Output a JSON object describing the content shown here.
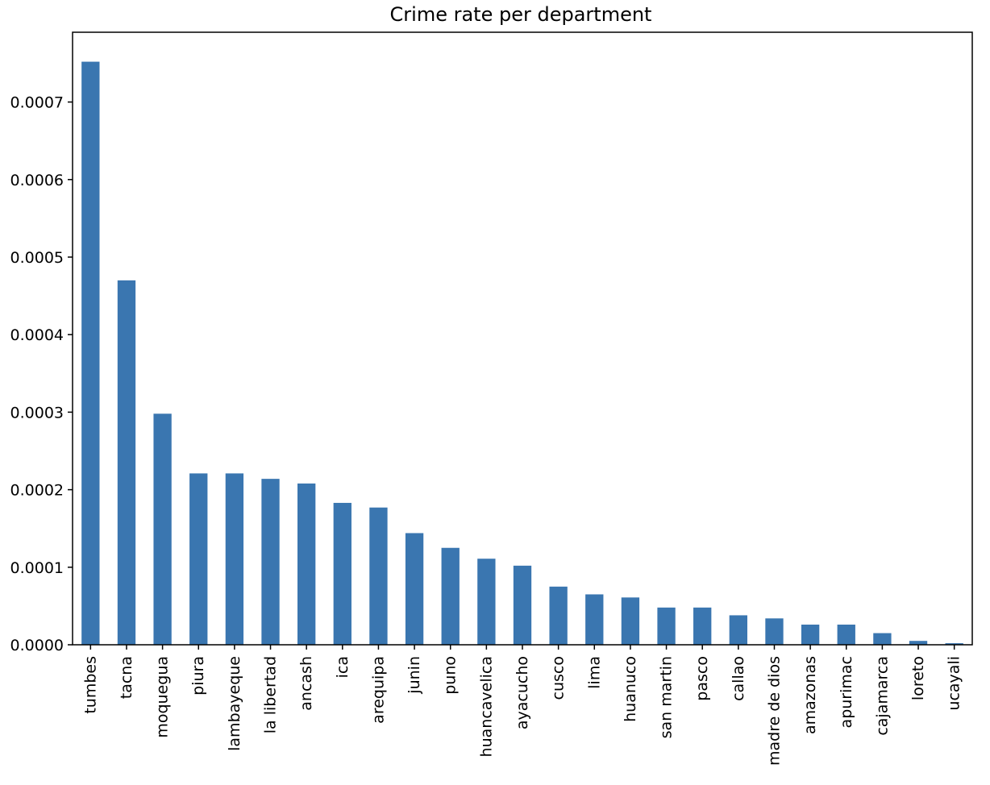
{
  "chart_data": {
    "type": "bar",
    "title": "Crime rate per department",
    "xlabel": "",
    "ylabel": "",
    "categories": [
      "tumbes",
      "tacna",
      "moquegua",
      "piura",
      "lambayeque",
      "la libertad",
      "ancash",
      "ica",
      "arequipa",
      "junin",
      "puno",
      "huancavelica",
      "ayacucho",
      "cusco",
      "lima",
      "huanuco",
      "san martin",
      "pasco",
      "callao",
      "madre de dios",
      "amazonas",
      "apurimac",
      "cajamarca",
      "loreto",
      "ucayali"
    ],
    "values": [
      0.000752,
      0.00047,
      0.000298,
      0.000221,
      0.000221,
      0.000214,
      0.000208,
      0.000183,
      0.000177,
      0.000144,
      0.000125,
      0.000111,
      0.000102,
      7.5e-05,
      6.5e-05,
      6.1e-05,
      4.8e-05,
      4.8e-05,
      3.8e-05,
      3.4e-05,
      2.6e-05,
      2.6e-05,
      1.5e-05,
      5e-06,
      2e-06
    ],
    "ylim": [
      0,
      0.00079
    ],
    "yticks": [
      0.0,
      0.0001,
      0.0002,
      0.0003,
      0.0004,
      0.0005,
      0.0006,
      0.0007
    ],
    "ytick_labels": [
      "0.0000",
      "0.0001",
      "0.0002",
      "0.0003",
      "0.0004",
      "0.0005",
      "0.0006",
      "0.0007"
    ],
    "bar_color": "#3a76b0",
    "grid": false,
    "legend": "none"
  }
}
